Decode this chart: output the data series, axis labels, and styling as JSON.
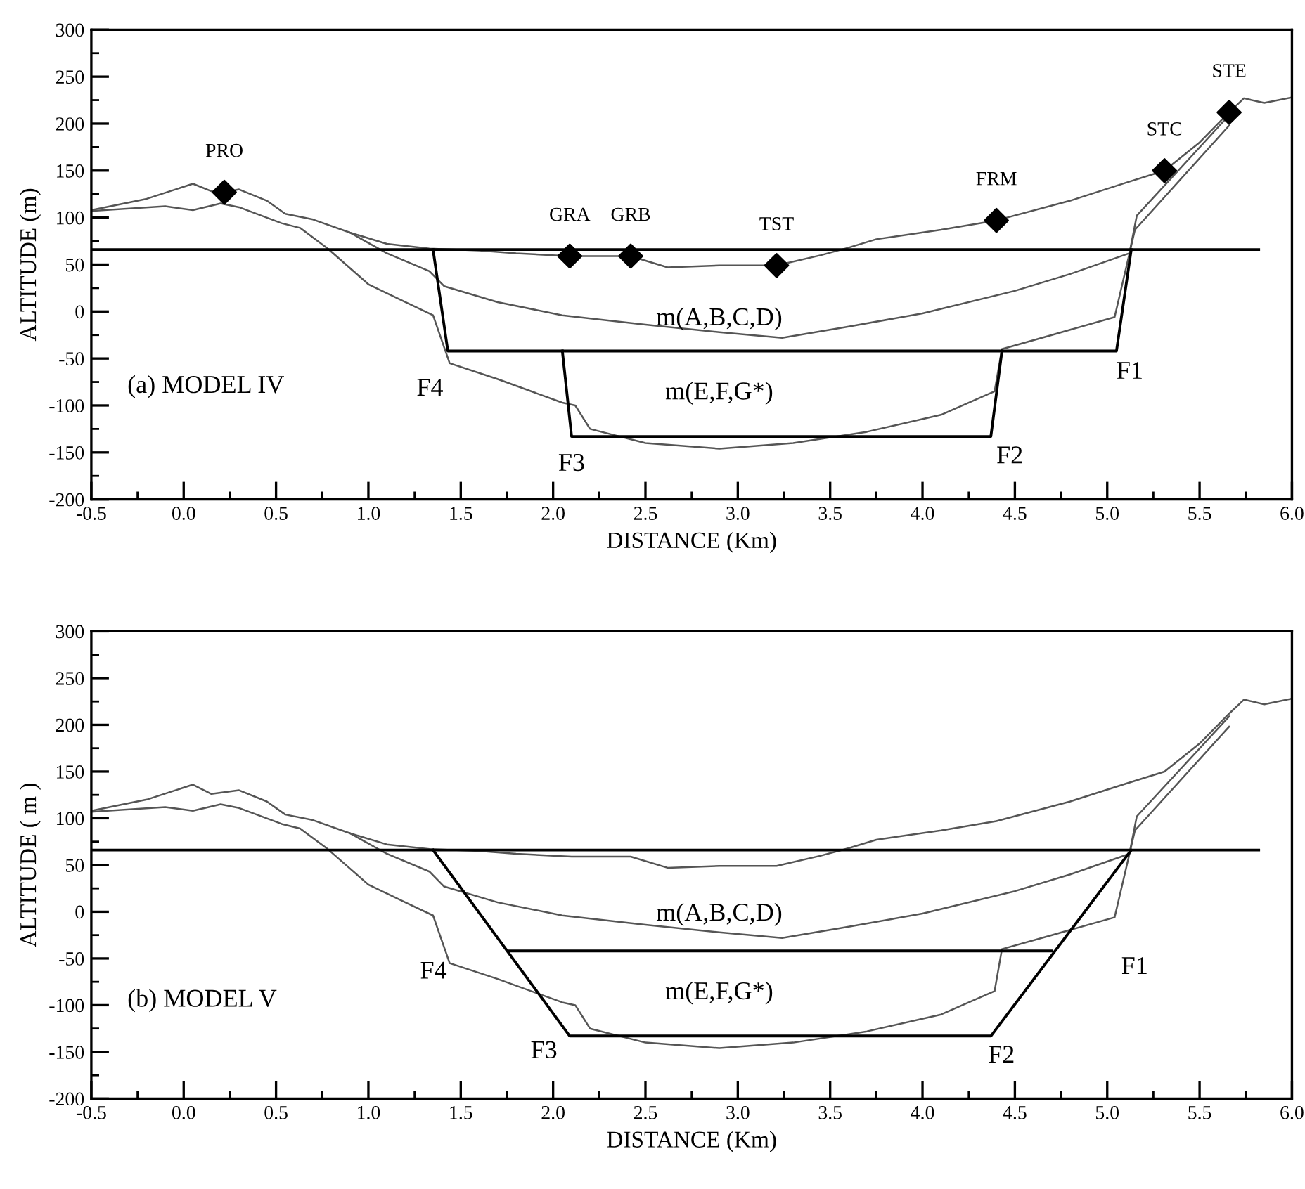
{
  "chart_data": [
    {
      "type": "line",
      "xlabel": "DISTANCE (Km)",
      "ylabel": "ALTITUDE (m)",
      "xlim": [
        -0.5,
        6.0
      ],
      "ylim": [
        -200,
        300
      ],
      "xticks": [
        -0.5,
        {
          "value": -0.25,
          "label": null
        },
        {
          "value": 0,
          "label": "0.0"
        },
        {
          "value": 0.25,
          "label": null
        },
        0.5,
        {
          "value": 0.75,
          "label": null
        },
        {
          "value": 1,
          "label": "1.0"
        },
        {
          "value": 1.25,
          "label": null
        },
        1.5,
        {
          "value": 1.75,
          "label": null
        },
        {
          "value": 2,
          "label": "2.0"
        },
        {
          "value": 2.25,
          "label": null
        },
        2.5,
        {
          "value": 2.75,
          "label": null
        },
        {
          "value": 3,
          "label": "3.0"
        },
        {
          "value": 3.25,
          "label": null
        },
        3.5,
        {
          "value": 3.75,
          "label": null
        },
        {
          "value": 4,
          "label": "4.0"
        },
        {
          "value": 4.25,
          "label": null
        },
        4.5,
        {
          "value": 4.75,
          "label": null
        },
        {
          "value": 5,
          "label": "5.0"
        },
        {
          "value": 5.25,
          "label": null
        },
        5.5,
        {
          "value": 5.75,
          "label": null
        },
        {
          "value": 6,
          "label": "6.0"
        }
      ],
      "yticks": [
        -200,
        {
          "value": -175,
          "label": null
        },
        -150,
        {
          "value": -125,
          "label": null
        },
        -100,
        {
          "value": -75,
          "label": null
        },
        -50,
        {
          "value": -25,
          "label": null
        },
        0,
        {
          "value": 25,
          "label": null
        },
        50,
        {
          "value": 75,
          "label": null
        },
        100,
        {
          "value": 125,
          "label": null
        },
        150,
        {
          "value": 175,
          "label": null
        },
        200,
        {
          "value": 225,
          "label": null
        },
        250,
        {
          "value": 275,
          "label": null
        },
        300
      ],
      "grid": false,
      "legend": false,
      "line_style": "solid",
      "series": [
        {
          "color": "#555555",
          "x": [
            -0.5,
            -0.2,
            0.05,
            0.15,
            0.22,
            0.3,
            0.45,
            0.55,
            0.7,
            0.9,
            1.1,
            1.33,
            1.6,
            1.8,
            2.09,
            2.42,
            2.62,
            2.9,
            3.21,
            3.45,
            3.6,
            3.75,
            4.1,
            4.4,
            4.8,
            5.1,
            5.31,
            5.5,
            5.66,
            5.74,
            5.85,
            6.0
          ],
          "values": [
            108,
            120,
            136,
            128,
            127,
            130,
            118,
            104,
            98,
            84,
            72,
            67,
            65,
            62,
            59,
            59,
            47,
            49,
            49,
            60,
            68,
            77,
            87,
            97,
            118,
            137,
            150,
            180,
            212,
            227,
            222,
            228
          ]
        },
        {
          "color": "#555555",
          "x": [
            0.9,
            1.1,
            1.33,
            1.41,
            1.7,
            2.05,
            2.5,
            2.9,
            3.24,
            3.6,
            4.0,
            4.5,
            4.8,
            5.12,
            5.16,
            5.66
          ],
          "values": [
            84,
            62,
            43,
            27,
            10,
            -4,
            -14,
            -22,
            -28,
            -16,
            -2,
            22,
            40,
            62,
            102,
            209
          ]
        },
        {
          "color": "#555555",
          "x": [
            -0.5,
            -0.1,
            0.05,
            0.2,
            0.3,
            0.53,
            0.63,
            0.78,
            1.0,
            1.2,
            1.35,
            1.44,
            1.7,
            2.05,
            2.12,
            2.2,
            2.5,
            2.9,
            3.3,
            3.7,
            4.1,
            4.39,
            4.43,
            4.7,
            5.04,
            5.13,
            5.15,
            5.66
          ],
          "values": [
            107,
            112,
            108,
            115,
            111,
            94,
            89,
            67,
            29,
            10,
            -4,
            -55,
            -72,
            -97,
            -100,
            -125,
            -140,
            -146,
            -140,
            -128,
            -110,
            -85,
            -40,
            -25,
            -6,
            70,
            87,
            198
          ]
        },
        {
          "color": "#000000",
          "x": [
            -0.5,
            5.82
          ],
          "values": [
            66,
            66
          ]
        },
        {
          "color": "#000000",
          "x": [
            1.35,
            1.43,
            5.05,
            5.13
          ],
          "values": [
            66,
            -42,
            -42,
            66
          ]
        },
        {
          "color": "#000000",
          "x": [
            2.05,
            2.1,
            4.37,
            4.43
          ],
          "values": [
            -42,
            -133,
            -133,
            -42
          ]
        },
        {
          "type": "scatter",
          "color": "#000000",
          "marker": "diamond",
          "x": [
            0.22,
            2.09,
            2.42,
            3.21,
            4.4,
            5.31,
            5.66
          ],
          "values": [
            127,
            59,
            59,
            49,
            97,
            150,
            212
          ]
        }
      ],
      "annotations": [
        "(a) MODEL IV",
        {
          "text": "PRO",
          "x": 0.22,
          "y": 127
        },
        {
          "text": "GRA",
          "x": 2.09,
          "y": 59
        },
        {
          "text": "GRB",
          "x": 2.42,
          "y": 59
        },
        {
          "text": "TST",
          "x": 3.21,
          "y": 49
        },
        {
          "text": "FRM",
          "x": 4.4,
          "y": 97
        },
        {
          "text": "STC",
          "x": 5.31,
          "y": 150
        },
        {
          "text": "STE",
          "x": 5.66,
          "y": 212
        },
        "m(A,B,C,D)",
        "m(E,F,G*)",
        "F4",
        "F3",
        "F2",
        "F1"
      ]
    },
    {
      "type": "line",
      "xlabel": "DISTANCE (Km)",
      "ylabel": "ALTITUDE ( m )",
      "xlim": [
        -0.5,
        6.0
      ],
      "ylim": [
        -200,
        300
      ],
      "xticks": [
        -0.5,
        {
          "value": -0.25,
          "label": null
        },
        {
          "value": 0,
          "label": "0.0"
        },
        {
          "value": 0.25,
          "label": null
        },
        0.5,
        {
          "value": 0.75,
          "label": null
        },
        {
          "value": 1,
          "label": "1.0"
        },
        {
          "value": 1.25,
          "label": null
        },
        1.5,
        {
          "value": 1.75,
          "label": null
        },
        {
          "value": 2,
          "label": "2.0"
        },
        {
          "value": 2.25,
          "label": null
        },
        2.5,
        {
          "value": 2.75,
          "label": null
        },
        {
          "value": 3,
          "label": "3.0"
        },
        {
          "value": 3.25,
          "label": null
        },
        3.5,
        {
          "value": 3.75,
          "label": null
        },
        {
          "value": 4,
          "label": "4.0"
        },
        {
          "value": 4.25,
          "label": null
        },
        4.5,
        {
          "value": 4.75,
          "label": null
        },
        {
          "value": 5,
          "label": "5.0"
        },
        {
          "value": 5.25,
          "label": null
        },
        5.5,
        {
          "value": 5.75,
          "label": null
        },
        {
          "value": 6,
          "label": "6.0"
        }
      ],
      "yticks": [
        -200,
        {
          "value": -175,
          "label": null
        },
        -150,
        {
          "value": -125,
          "label": null
        },
        -100,
        {
          "value": -75,
          "label": null
        },
        -50,
        {
          "value": -25,
          "label": null
        },
        0,
        {
          "value": 25,
          "label": null
        },
        50,
        {
          "value": 75,
          "label": null
        },
        100,
        {
          "value": 125,
          "label": null
        },
        150,
        {
          "value": 175,
          "label": null
        },
        200,
        {
          "value": 225,
          "label": null
        },
        250,
        {
          "value": 275,
          "label": null
        },
        300
      ],
      "grid": false,
      "legend": false,
      "line_style": "solid",
      "series": [
        {
          "color": "#555555",
          "x": [
            -0.5,
            -0.2,
            0.05,
            0.15,
            0.3,
            0.45,
            0.55,
            0.7,
            0.9,
            1.1,
            1.33,
            1.6,
            1.8,
            2.1,
            2.42,
            2.62,
            2.9,
            3.21,
            3.45,
            3.6,
            3.75,
            4.1,
            4.4,
            4.8,
            5.1,
            5.31,
            5.5,
            5.66,
            5.74,
            5.85,
            6.0
          ],
          "values": [
            108,
            120,
            136,
            126,
            130,
            118,
            104,
            98,
            84,
            72,
            67,
            65,
            62,
            59,
            59,
            47,
            49,
            49,
            60,
            68,
            77,
            87,
            97,
            118,
            137,
            150,
            180,
            212,
            227,
            222,
            228
          ]
        },
        {
          "color": "#555555",
          "x": [
            0.9,
            1.1,
            1.33,
            1.41,
            1.7,
            2.05,
            2.5,
            2.9,
            3.24,
            3.6,
            4.0,
            4.5,
            4.8,
            5.12,
            5.16,
            5.66
          ],
          "values": [
            84,
            62,
            43,
            27,
            10,
            -4,
            -14,
            -22,
            -28,
            -16,
            -2,
            22,
            40,
            62,
            102,
            209
          ]
        },
        {
          "color": "#555555",
          "x": [
            -0.5,
            -0.1,
            0.05,
            0.2,
            0.3,
            0.53,
            0.63,
            0.78,
            1.0,
            1.2,
            1.35,
            1.44,
            1.7,
            2.05,
            2.12,
            2.2,
            2.5,
            2.9,
            3.3,
            3.7,
            4.1,
            4.39,
            4.43,
            4.7,
            5.04,
            5.13,
            5.15,
            5.66
          ],
          "values": [
            107,
            112,
            108,
            115,
            111,
            94,
            89,
            67,
            29,
            10,
            -4,
            -55,
            -72,
            -97,
            -100,
            -125,
            -140,
            -146,
            -140,
            -128,
            -110,
            -85,
            -40,
            -25,
            -6,
            70,
            87,
            198
          ]
        },
        {
          "color": "#000000",
          "x": [
            -0.5,
            5.82
          ],
          "values": [
            66,
            66
          ]
        },
        {
          "color": "#000000",
          "x": [
            1.35,
            2.09,
            4.37,
            5.13
          ],
          "values": [
            66,
            -133,
            -133,
            66
          ]
        },
        {
          "color": "#000000",
          "x": [
            1.76,
            4.7
          ],
          "values": [
            -42,
            -42
          ]
        }
      ],
      "annotations": [
        "(b) MODEL V",
        "m(A,B,C,D)",
        "m(E,F,G*)",
        "F4",
        "F3",
        "F2",
        "F1"
      ]
    }
  ]
}
